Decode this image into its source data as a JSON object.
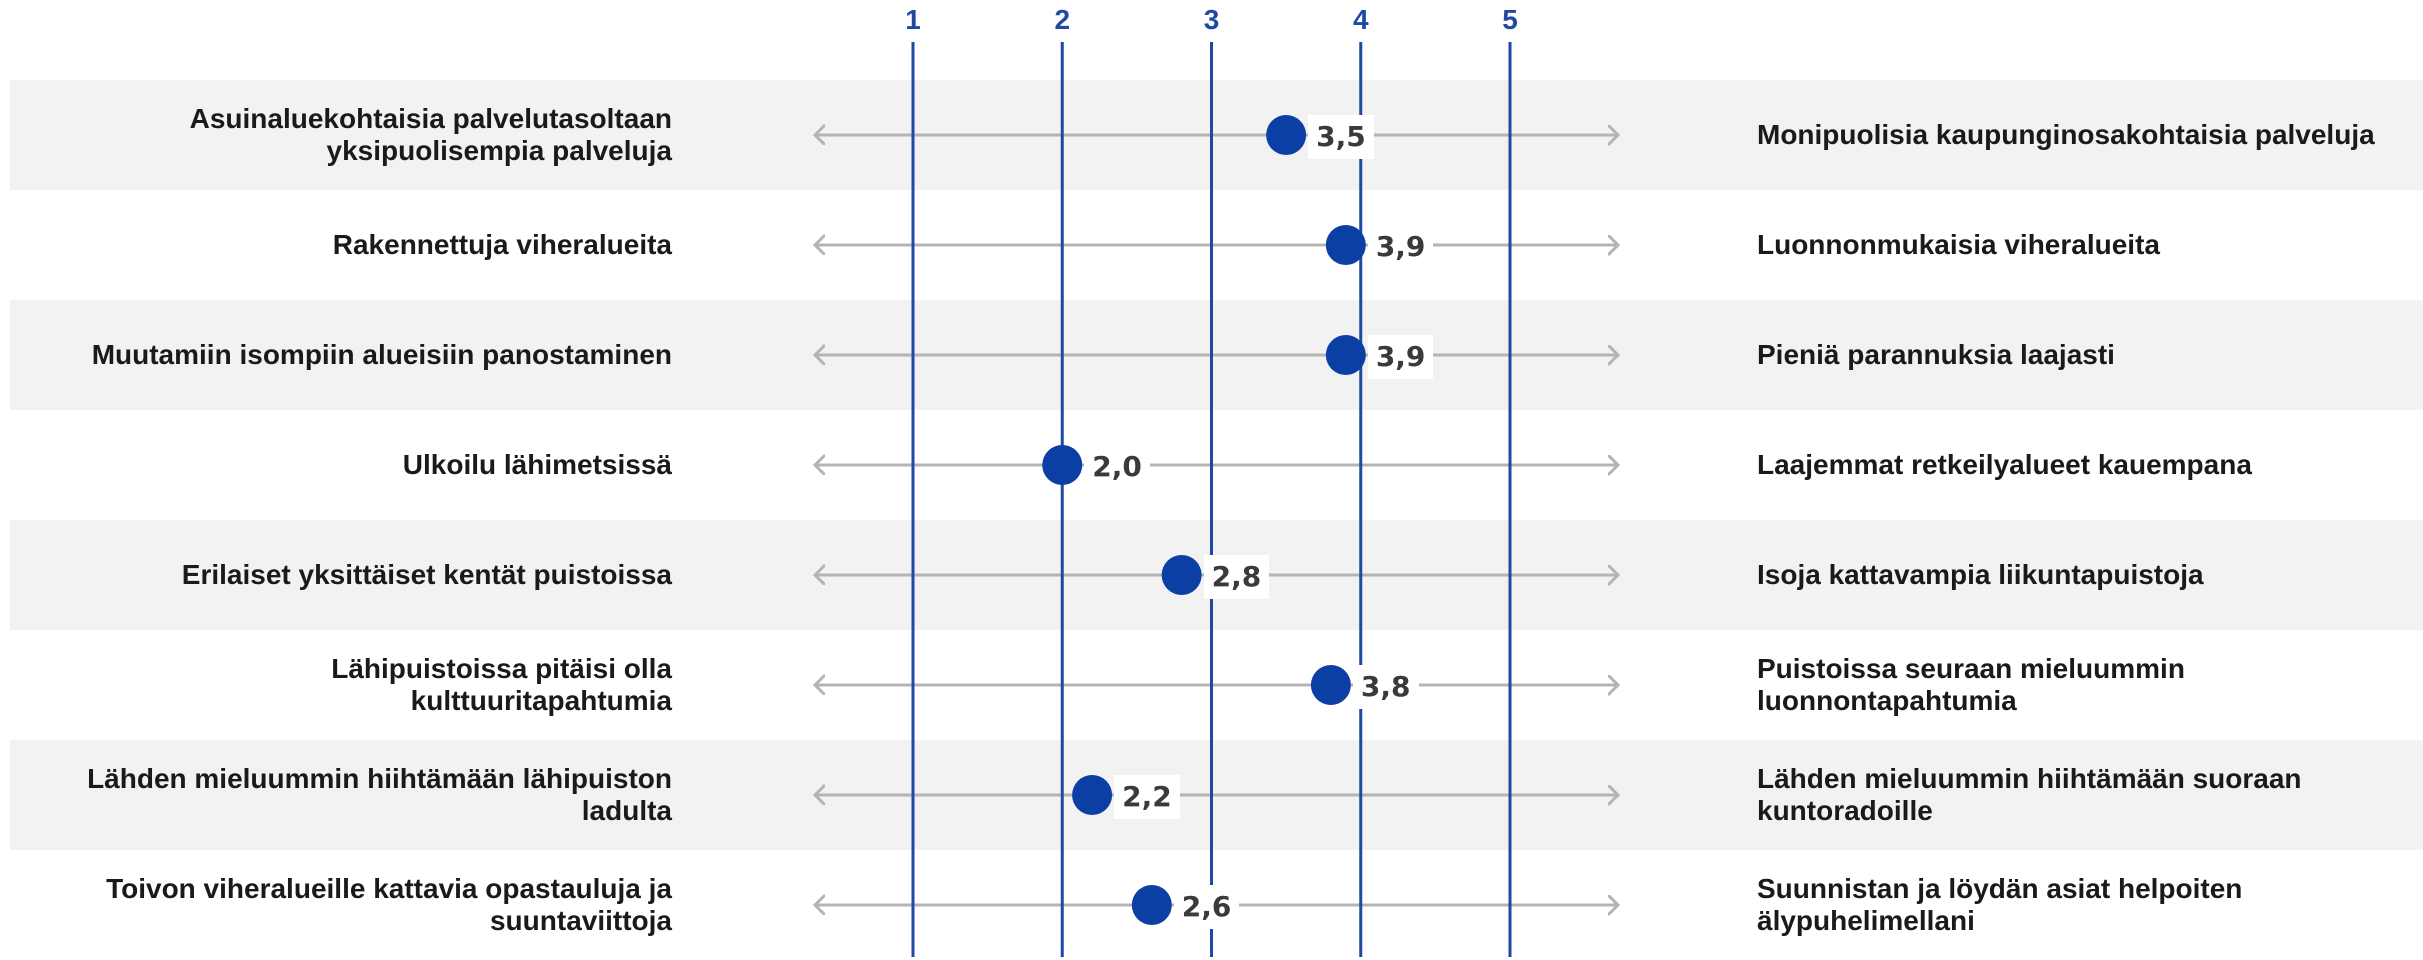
{
  "chart_data": {
    "type": "scatter",
    "xlim": [
      1,
      5
    ],
    "x_ticks": [
      "1",
      "2",
      "3",
      "4",
      "5"
    ],
    "grid": true,
    "marker_color": "#0b3fa3",
    "axis_color": "#1f49a3",
    "arrow_color": "#b4b4b4",
    "rows": [
      {
        "left": "Asuinaluekohtaisia palvelutasoltaan yksipuolisempia palveluja",
        "right": "Monipuolisia kaupunginosakohtaisia palveluja",
        "value": 3.5,
        "value_label": "3,5"
      },
      {
        "left": "Rakennettuja viheralueita",
        "right": "Luonnonmukaisia viheralueita",
        "value": 3.9,
        "value_label": "3,9"
      },
      {
        "left": "Muutamiin isompiin alueisiin panostaminen",
        "right": "Pieniä parannuksia laajasti",
        "value": 3.9,
        "value_label": "3,9"
      },
      {
        "left": "Ulkoilu lähimetsissä",
        "right": "Laajemmat retkeilyalueet kauempana",
        "value": 2.0,
        "value_label": "2,0"
      },
      {
        "left": "Erilaiset yksittäiset kentät puistoissa",
        "right": "Isoja kattavampia liikuntapuistoja",
        "value": 2.8,
        "value_label": "2,8"
      },
      {
        "left": "Lähipuistoissa pitäisi olla kulttuuritapahtumia",
        "right": "Puistoissa seuraan mieluummin luonnontapahtumia",
        "value": 3.8,
        "value_label": "3,8"
      },
      {
        "left": "Lähden mieluummin hiihtämään lähipuiston ladulta",
        "right": "Lähden mieluummin hiihtämään suoraan kuntoradoille",
        "value": 2.2,
        "value_label": "2,2"
      },
      {
        "left": "Toivon viheralueille kattavia opastauluja ja suuntaviittoja",
        "right": "Suunnistan ja löydän asiat helpoiten älypuhelimellani",
        "value": 2.6,
        "value_label": "2,6"
      }
    ]
  }
}
